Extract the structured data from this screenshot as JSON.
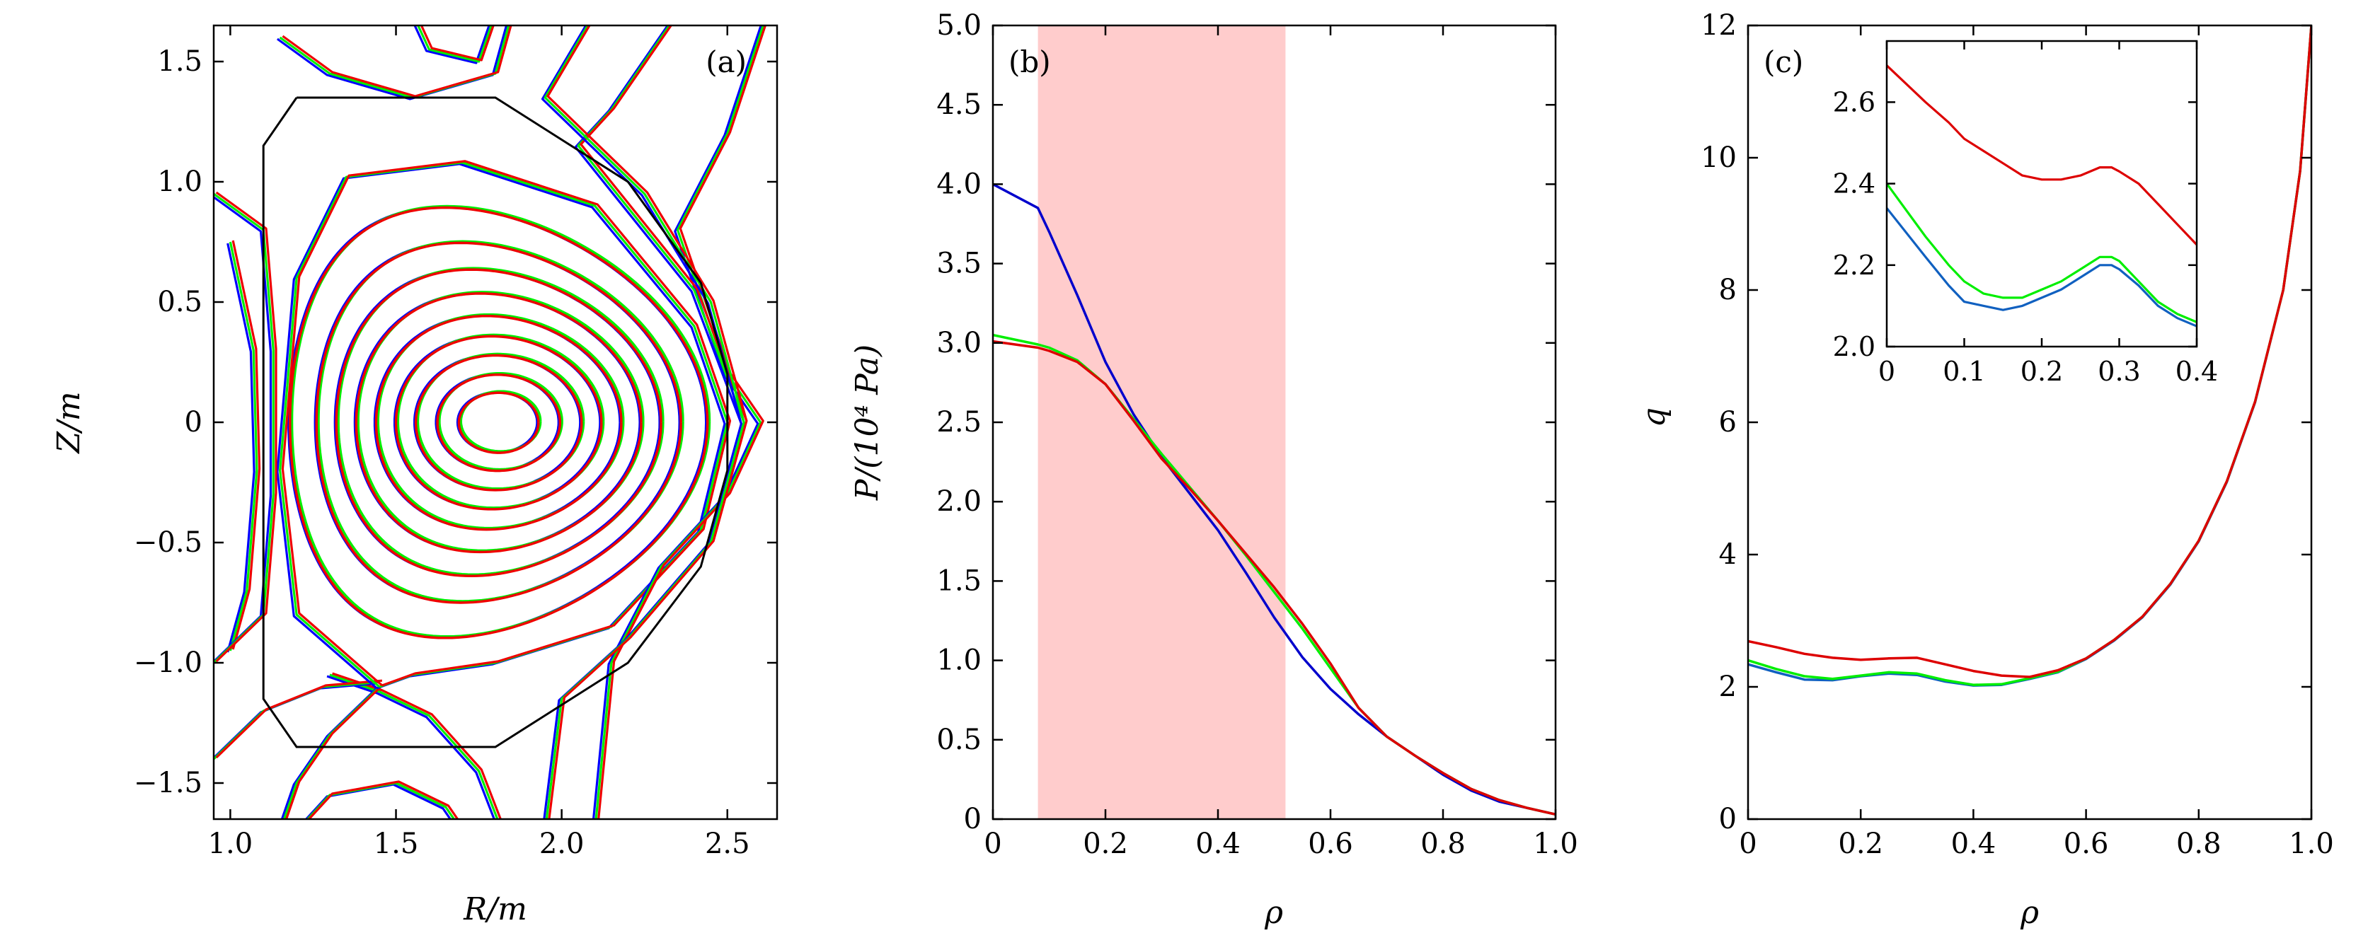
{
  "chart_data": [
    {
      "id": "a",
      "type": "line",
      "panel_tag": "(a)",
      "xlabel": "R/m",
      "ylabel": "Z/m",
      "xlim": [
        0.95,
        2.65
      ],
      "ylim": [
        -1.65,
        1.65
      ],
      "xticks": [
        1.0,
        1.5,
        2.0,
        2.5
      ],
      "xtick_labels": [
        "1.0",
        "1.5",
        "2.0",
        "2.5"
      ],
      "yticks": [
        -1.5,
        -1.0,
        -0.5,
        0,
        0.5,
        1.0,
        1.5
      ],
      "ytick_labels": [
        "−1.5",
        "−1.0",
        "−0.5",
        "0",
        "0.5",
        "1.0",
        "1.5"
      ],
      "grid": false,
      "wall": [
        [
          1.2,
          1.35
        ],
        [
          1.8,
          1.35
        ],
        [
          2.2,
          1.0
        ],
        [
          2.42,
          0.58
        ],
        [
          2.5,
          0.2
        ],
        [
          2.5,
          -0.2
        ],
        [
          2.42,
          -0.6
        ],
        [
          2.2,
          -1.0
        ],
        [
          1.8,
          -1.35
        ],
        [
          1.2,
          -1.35
        ],
        [
          1.1,
          -1.15
        ],
        [
          1.1,
          1.15
        ],
        [
          1.2,
          1.35
        ]
      ],
      "magnetic_axis": [
        1.81,
        0.0
      ],
      "flux_surfaces": [
        {
          "a": 0.12,
          "kappa": 1.04,
          "delta": 0.0
        },
        {
          "a": 0.185,
          "kappa": 1.08,
          "delta": 0.02
        },
        {
          "a": 0.25,
          "kappa": 1.12,
          "delta": 0.04
        },
        {
          "a": 0.31,
          "kappa": 1.16,
          "delta": 0.07
        },
        {
          "a": 0.37,
          "kappa": 1.2,
          "delta": 0.1
        },
        {
          "a": 0.43,
          "kappa": 1.25,
          "delta": 0.13
        },
        {
          "a": 0.49,
          "kappa": 1.3,
          "delta": 0.17
        },
        {
          "a": 0.55,
          "kappa": 1.36,
          "delta": 0.21
        },
        {
          "a": 0.63,
          "kappa": 1.42,
          "delta": 0.26
        }
      ],
      "series": [
        {
          "color": "#0000ff"
        },
        {
          "color": "#00ee00"
        },
        {
          "color": "#ee0000"
        }
      ]
    },
    {
      "id": "b",
      "type": "line",
      "panel_tag": "(b)",
      "xlabel": "ρ",
      "ylabel": "P/(10⁴ Pa)",
      "xlim": [
        0,
        1.0
      ],
      "ylim": [
        0,
        5.0
      ],
      "xticks": [
        0,
        0.2,
        0.4,
        0.6,
        0.8,
        1.0
      ],
      "xtick_labels": [
        "0",
        "0.2",
        "0.4",
        "0.6",
        "0.8",
        "1.0"
      ],
      "yticks": [
        0,
        0.5,
        1.0,
        1.5,
        2.0,
        2.5,
        3.0,
        3.5,
        4.0,
        4.5,
        5.0
      ],
      "ytick_labels": [
        "0",
        "0.5",
        "1.0",
        "1.5",
        "2.0",
        "2.5",
        "3.0",
        "3.5",
        "4.0",
        "4.5",
        "5.0"
      ],
      "grid": false,
      "shaded_band": {
        "x": [
          0.08,
          0.52
        ],
        "color": "#ffcccc"
      },
      "x": [
        0,
        0.08,
        0.1,
        0.15,
        0.2,
        0.25,
        0.3,
        0.35,
        0.4,
        0.45,
        0.5,
        0.55,
        0.6,
        0.65,
        0.7,
        0.75,
        0.8,
        0.85,
        0.9,
        0.95,
        1.0
      ],
      "series": [
        {
          "color": "#0000cc",
          "values": [
            4.0,
            3.85,
            3.7,
            3.3,
            2.88,
            2.55,
            2.28,
            2.05,
            1.82,
            1.55,
            1.27,
            1.02,
            0.82,
            0.66,
            0.52,
            0.4,
            0.28,
            0.18,
            0.11,
            0.07,
            0.03
          ]
        },
        {
          "color": "#00ee00",
          "values": [
            3.05,
            2.99,
            2.97,
            2.89,
            2.74,
            2.52,
            2.3,
            2.09,
            1.88,
            1.66,
            1.43,
            1.2,
            0.95,
            0.7,
            0.52,
            0.4,
            0.29,
            0.19,
            0.12,
            0.07,
            0.03
          ]
        },
        {
          "color": "#dd0000",
          "values": [
            3.01,
            2.97,
            2.95,
            2.88,
            2.74,
            2.51,
            2.27,
            2.08,
            1.88,
            1.67,
            1.46,
            1.23,
            0.98,
            0.7,
            0.52,
            0.4,
            0.29,
            0.19,
            0.12,
            0.07,
            0.03
          ]
        }
      ]
    },
    {
      "id": "c",
      "type": "line",
      "panel_tag": "(c)",
      "xlabel": "ρ",
      "ylabel": "q",
      "xlim": [
        0,
        1.0
      ],
      "ylim": [
        0,
        12
      ],
      "xticks": [
        0,
        0.2,
        0.4,
        0.6,
        0.8,
        1.0
      ],
      "xtick_labels": [
        "0",
        "0.2",
        "0.4",
        "0.6",
        "0.8",
        "1.0"
      ],
      "yticks": [
        0,
        2,
        4,
        6,
        8,
        10,
        12
      ],
      "ytick_labels": [
        "0",
        "2",
        "4",
        "6",
        "8",
        "10",
        "12"
      ],
      "grid": false,
      "x": [
        0,
        0.05,
        0.1,
        0.15,
        0.2,
        0.25,
        0.3,
        0.35,
        0.4,
        0.45,
        0.5,
        0.55,
        0.6,
        0.65,
        0.7,
        0.75,
        0.8,
        0.85,
        0.9,
        0.95,
        0.98,
        1.0
      ],
      "series": [
        {
          "color": "#1060c0",
          "values": [
            2.34,
            2.22,
            2.11,
            2.1,
            2.16,
            2.2,
            2.18,
            2.08,
            2.02,
            2.03,
            2.12,
            2.22,
            2.42,
            2.7,
            3.05,
            3.55,
            4.2,
            5.1,
            6.3,
            8.0,
            9.8,
            12.0
          ]
        },
        {
          "color": "#00ee00",
          "values": [
            2.4,
            2.27,
            2.16,
            2.12,
            2.17,
            2.22,
            2.2,
            2.1,
            2.03,
            2.04,
            2.13,
            2.23,
            2.43,
            2.71,
            3.06,
            3.56,
            4.21,
            5.11,
            6.31,
            8.0,
            9.8,
            12.0
          ]
        },
        {
          "color": "#dd0000",
          "values": [
            2.69,
            2.6,
            2.5,
            2.44,
            2.41,
            2.43,
            2.44,
            2.34,
            2.24,
            2.17,
            2.15,
            2.25,
            2.43,
            2.71,
            3.06,
            3.56,
            4.21,
            5.11,
            6.31,
            8.0,
            9.8,
            12.0
          ]
        }
      ],
      "inset": {
        "xlim": [
          0,
          0.4
        ],
        "ylim": [
          2.0,
          2.75
        ],
        "xticks": [
          0,
          0.1,
          0.2,
          0.3,
          0.4
        ],
        "xtick_labels": [
          "0",
          "0.1",
          "0.2",
          "0.3",
          "0.4"
        ],
        "yticks": [
          2.0,
          2.2,
          2.4,
          2.6
        ],
        "ytick_labels": [
          "2.0",
          "2.2",
          "2.4",
          "2.6"
        ],
        "x": [
          0,
          0.05,
          0.08,
          0.1,
          0.125,
          0.15,
          0.175,
          0.2,
          0.225,
          0.25,
          0.275,
          0.29,
          0.3,
          0.325,
          0.35,
          0.375,
          0.4
        ],
        "series": [
          {
            "color": "#1060c0",
            "values": [
              2.34,
              2.22,
              2.15,
              2.11,
              2.1,
              2.09,
              2.1,
              2.12,
              2.14,
              2.17,
              2.2,
              2.2,
              2.19,
              2.15,
              2.1,
              2.07,
              2.05
            ]
          },
          {
            "color": "#00ee00",
            "values": [
              2.4,
              2.27,
              2.2,
              2.16,
              2.13,
              2.12,
              2.12,
              2.14,
              2.16,
              2.19,
              2.22,
              2.22,
              2.21,
              2.16,
              2.11,
              2.08,
              2.06
            ]
          },
          {
            "color": "#dd0000",
            "values": [
              2.69,
              2.6,
              2.55,
              2.51,
              2.48,
              2.45,
              2.42,
              2.41,
              2.41,
              2.42,
              2.44,
              2.44,
              2.43,
              2.4,
              2.35,
              2.3,
              2.25
            ]
          }
        ]
      }
    }
  ]
}
